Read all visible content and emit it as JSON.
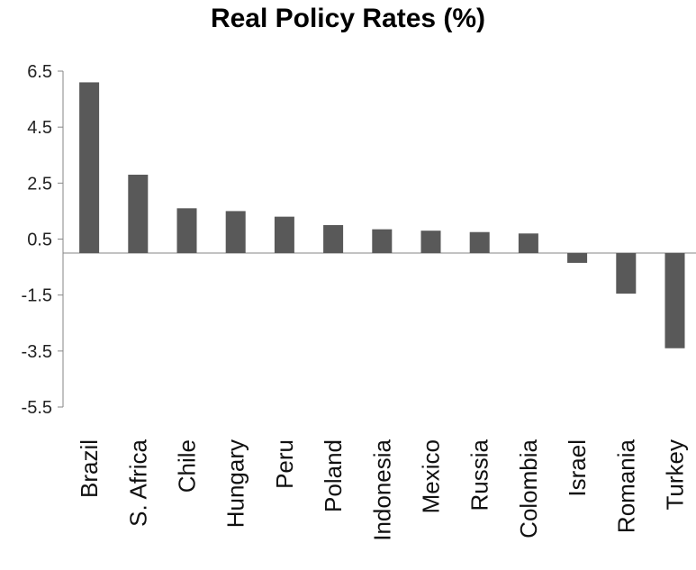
{
  "chart_data": {
    "type": "bar",
    "title": "Real Policy Rates (%)",
    "xlabel": "",
    "ylabel": "",
    "categories": [
      "Brazil",
      "S. Africa",
      "Chile",
      "Hungary",
      "Peru",
      "Poland",
      "Indonesia",
      "Mexico",
      "Russia",
      "Colombia",
      "Israel",
      "Romania",
      "Turkey"
    ],
    "values": [
      6.1,
      2.8,
      1.6,
      1.5,
      1.3,
      1.0,
      0.85,
      0.8,
      0.75,
      0.7,
      -0.35,
      -1.45,
      -3.4
    ],
    "yticks": [
      "6.5",
      "4.5",
      "2.5",
      "0.5",
      "-1.5",
      "-3.5",
      "-5.5"
    ],
    "ylim": [
      -5.5,
      6.5
    ],
    "bar_color": "#595959",
    "axis_color": "#868686",
    "grid": false,
    "legend": "none"
  }
}
